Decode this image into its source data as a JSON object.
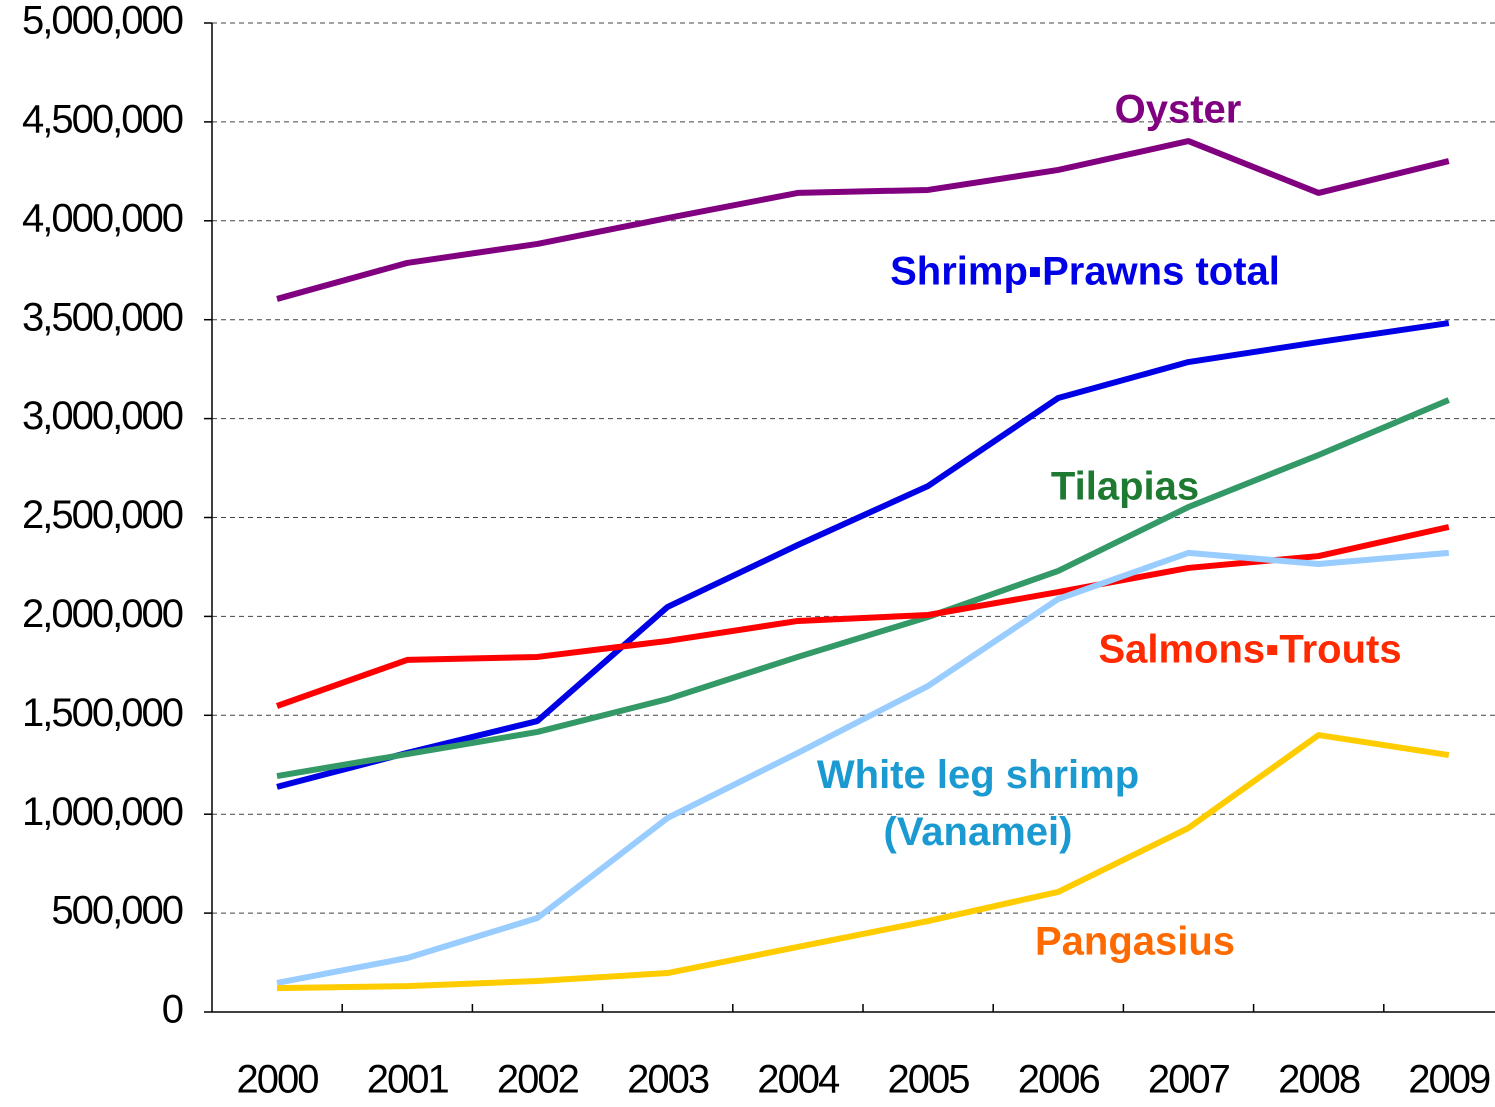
{
  "chart_data": {
    "type": "line",
    "categories": [
      "2000",
      "2001",
      "2002",
      "2003",
      "2004",
      "2005",
      "2006",
      "2007",
      "2008",
      "2009"
    ],
    "series": [
      {
        "name": "Oyster",
        "color": "#800080",
        "label_color": "#800080",
        "values": [
          3605000,
          3787000,
          3883000,
          4014000,
          4141000,
          4156000,
          4257000,
          4403000,
          4141000,
          4302000
        ]
      },
      {
        "name": "Shrimp▪Prawns  total",
        "color": "#0000e6",
        "label_color": "#0000e6",
        "values": [
          1138000,
          1310000,
          1471000,
          2048000,
          2361000,
          2659000,
          3104000,
          3286000,
          3387000,
          3483000
        ]
      },
      {
        "name": "Tilapias",
        "color": "#339966",
        "label_color": "#1e7a30",
        "values": [
          1193000,
          1304000,
          1416000,
          1582000,
          1795000,
          1997000,
          2230000,
          2553000,
          2816000,
          3094000
        ]
      },
      {
        "name": "Salmons▪Trouts",
        "color": "#ff0000",
        "label_color": "#ff2a00",
        "values": [
          1547000,
          1780000,
          1795000,
          1876000,
          1977000,
          2007000,
          2123000,
          2245000,
          2305000,
          2452000
        ]
      },
      {
        "name": "White leg shrimp\n(Vanamei)",
        "color": "#99ccff",
        "label_color": "#1a9ad0",
        "values": [
          147000,
          273000,
          475000,
          981000,
          1310000,
          1648000,
          2088000,
          2321000,
          2265000,
          2321000
        ]
      },
      {
        "name": "Pangasius",
        "color": "#ffcc00",
        "label_color": "#ff6a00",
        "values": [
          121000,
          131000,
          157000,
          197000,
          329000,
          460000,
          607000,
          930000,
          1400000,
          1299000
        ]
      }
    ],
    "ylim": [
      0,
      5000000
    ],
    "yticks": [
      0,
      {
        "value": 500000,
        "label": "500,000"
      },
      {
        "value": 1000000,
        "label": "1,000,000"
      },
      {
        "value": 1500000,
        "label": "1,500,000"
      },
      {
        "value": 2000000,
        "label": "2,000,000"
      },
      {
        "value": 2500000,
        "label": "2,500,000"
      },
      {
        "value": 3000000,
        "label": "3,000,000"
      },
      {
        "value": 3500000,
        "label": "3,500,000"
      },
      {
        "value": 4000000,
        "label": "4,000,000"
      },
      {
        "value": 4500000,
        "label": "4,500,000"
      },
      {
        "value": 5000000,
        "label": "5,000,000"
      }
    ],
    "grid": true
  }
}
